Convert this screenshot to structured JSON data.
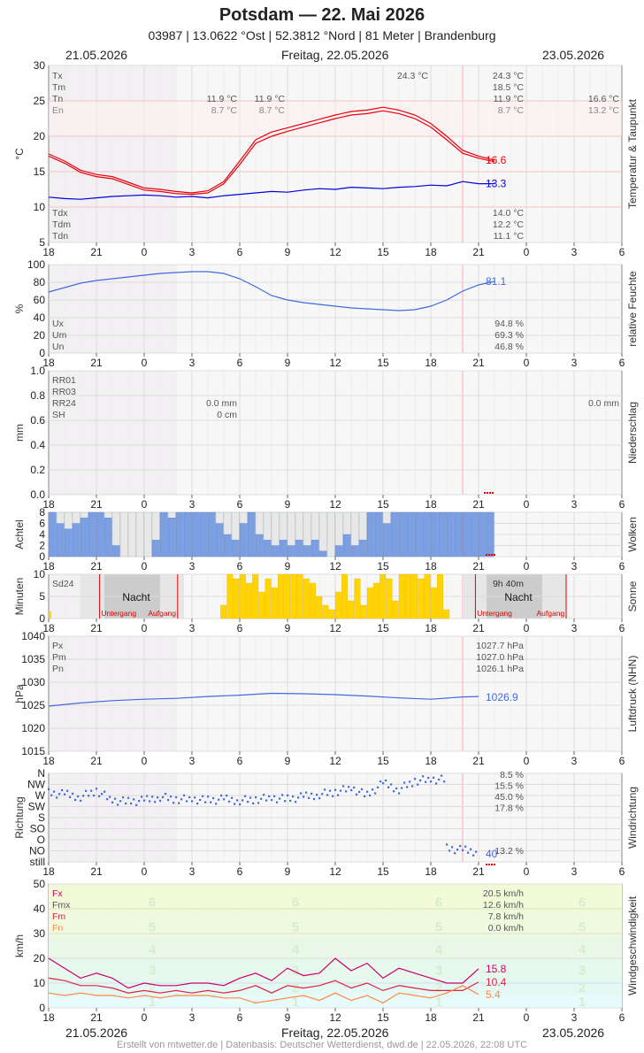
{
  "header": {
    "title": "Potsdam  —  22. Mai 2026",
    "subtitle": "03987  |  13.0622 °Ost  |  52.3812 °Nord  |  81 Meter  |  Brandenburg",
    "date_left": "21.05.2026",
    "date_center": "Freitag, 22.05.2026",
    "date_right": "23.05.2026"
  },
  "footer": "Erstellt von mtwetter.de | Datenbasis: Deutscher Wetterdienst, dwd.de | 22.05.2026, 22:08 UTC",
  "colors": {
    "temp": "#e8000b",
    "dew": "#0000dd",
    "humidity": "#4169e1",
    "precip_mark": "#e8000b",
    "cloud_fill": "#7b9fe0",
    "sun_fill": "#ffd400",
    "night": "#cccccc",
    "pressure": "#4169e1",
    "wind_dir": "#4169e1",
    "gust": "#cc0066",
    "wind_mean": "#dd2244",
    "wind_min": "#ff8844"
  },
  "chart_data": [
    {
      "type": "line",
      "ylabel": "°C",
      "side_label": "Temperatur & Taupunkt",
      "ylim": [
        5,
        30
      ],
      "yticks": [
        "30",
        "25",
        "20",
        "15",
        "10",
        "5"
      ],
      "xticks": [
        "18",
        "21",
        "0",
        "3",
        "6",
        "9",
        "12",
        "15",
        "18",
        "21",
        "0",
        "3",
        "6"
      ],
      "x_hours": [
        18,
        19,
        20,
        21,
        22,
        23,
        24,
        25,
        26,
        27,
        28,
        29,
        30,
        31,
        32,
        33,
        34,
        35,
        36,
        37,
        38,
        39,
        40,
        41,
        42,
        43,
        44,
        45,
        46
      ],
      "series": [
        {
          "key": "temp_upper",
          "values": [
            17.5,
            16.5,
            15.2,
            14.6,
            14.3,
            13.5,
            12.7,
            12.5,
            12.2,
            12.0,
            12.3,
            13.6,
            16.5,
            19.5,
            20.6,
            21.2,
            21.8,
            22.4,
            23.0,
            23.5,
            23.7,
            24.1,
            23.7,
            23.0,
            21.8,
            20.0,
            18.0,
            17.2,
            16.6
          ]
        },
        {
          "key": "temp_lower",
          "values": [
            17.2,
            16.2,
            14.9,
            14.3,
            14.0,
            13.2,
            12.4,
            12.2,
            11.9,
            11.8,
            12.0,
            13.3,
            16.0,
            19.0,
            20.0,
            20.7,
            21.3,
            21.9,
            22.5,
            23.0,
            23.2,
            23.6,
            23.2,
            22.5,
            21.3,
            19.5,
            17.6,
            16.9,
            16.4
          ]
        },
        {
          "key": "dew",
          "values": [
            11.4,
            11.2,
            11.1,
            11.3,
            11.5,
            11.6,
            11.7,
            11.6,
            11.4,
            11.5,
            11.3,
            11.6,
            11.8,
            12.0,
            12.2,
            12.1,
            12.4,
            12.6,
            12.5,
            12.8,
            12.7,
            12.6,
            12.8,
            12.9,
            13.1,
            13.0,
            13.6,
            13.3,
            13.3
          ]
        }
      ],
      "end_labels": [
        "16.6",
        "13.3"
      ],
      "stats_top": [
        {
          "label": "Tx",
          "left": "",
          "right": "24.3 °C",
          "right2": "24.3 °C",
          "far": ""
        },
        {
          "label": "Tm",
          "left": "",
          "right": "",
          "right2": "18.5 °C",
          "far": ""
        },
        {
          "label": "Tn",
          "left": "11.9 °C",
          "right": "11.9 °C",
          "right2": "11.9 °C",
          "far": "16.6 °C"
        },
        {
          "label": "En",
          "left": "8.7 °C",
          "right": "8.7 °C",
          "right2": "8.7 °C",
          "far": "13.2 °C"
        }
      ],
      "stats_bottom": [
        {
          "label": "Tdx",
          "value": "14.0 °C"
        },
        {
          "label": "Tdm",
          "value": "12.2 °C"
        },
        {
          "label": "Tdn",
          "value": "11.1 °C"
        }
      ]
    },
    {
      "type": "line",
      "ylabel": "%",
      "side_label": "relative Feuchte",
      "ylim": [
        0,
        100
      ],
      "yticks": [
        "100",
        "80",
        "60",
        "40",
        "20",
        "0"
      ],
      "x_hours": [
        18,
        19,
        20,
        21,
        22,
        23,
        24,
        25,
        26,
        27,
        28,
        29,
        30,
        31,
        32,
        33,
        34,
        35,
        36,
        37,
        38,
        39,
        40,
        41,
        42,
        43,
        44,
        45,
        46
      ],
      "series": [
        {
          "key": "humidity",
          "values": [
            69,
            74,
            79,
            82,
            84,
            86,
            88,
            90,
            91,
            92,
            92,
            90,
            84,
            75,
            65,
            60,
            57,
            55,
            53,
            51,
            50,
            49,
            48,
            49,
            53,
            60,
            70,
            77,
            81.1
          ]
        }
      ],
      "end_labels": [
        "81.1"
      ],
      "stats": [
        {
          "label": "Ux",
          "value": "94.8 %"
        },
        {
          "label": "Um",
          "value": "69.3 %"
        },
        {
          "label": "Un",
          "value": "46.8 %"
        }
      ]
    },
    {
      "type": "bar",
      "ylabel": "mm",
      "side_label": "Niederschlag",
      "ylim": [
        0,
        1.0
      ],
      "yticks": [
        "1.0",
        "0.8",
        "0.6",
        "0.4",
        "0.2",
        "0.0"
      ],
      "values": [],
      "stats": [
        {
          "label": "RR01",
          "left": "",
          "far": ""
        },
        {
          "label": "RR03",
          "left": "",
          "far": ""
        },
        {
          "label": "RR24",
          "left": "0.0 mm",
          "far": "0.0 mm"
        },
        {
          "label": "SH",
          "left": "0 cm",
          "far": ""
        }
      ]
    },
    {
      "type": "bar",
      "ylabel": "Achtel",
      "side_label": "Wolken",
      "ylim": [
        0,
        8
      ],
      "yticks": [
        "8",
        "6",
        "4",
        "2",
        "0"
      ],
      "x_hours": [
        18,
        18.5,
        19,
        19.5,
        20,
        20.5,
        21,
        21.5,
        22,
        22.5,
        23,
        23.5,
        24,
        24.5,
        25,
        25.5,
        26,
        26.5,
        27,
        27.5,
        28,
        28.5,
        29,
        29.5,
        30,
        30.5,
        31,
        31.5,
        32,
        32.5,
        33,
        33.5,
        34,
        34.5,
        35,
        35.5,
        36,
        36.5,
        37,
        37.5,
        38,
        38.5,
        39,
        39.5,
        40,
        40.5,
        41,
        41.5,
        42,
        42.5,
        43,
        43.5,
        44,
        44.5,
        45,
        45.5
      ],
      "values": [
        8,
        6,
        5,
        6,
        7,
        8,
        8,
        7,
        2,
        0,
        0,
        0,
        0,
        3,
        8,
        7,
        8,
        8,
        8,
        8,
        8,
        6,
        4,
        3,
        6,
        8,
        4,
        3,
        2,
        3,
        2,
        3,
        2,
        3,
        1,
        0,
        2,
        4,
        2,
        3,
        8,
        8,
        6,
        8,
        8,
        8,
        8,
        8,
        8,
        8,
        8,
        8,
        8,
        8,
        8,
        8
      ]
    },
    {
      "type": "bar",
      "ylabel": "Minuten",
      "side_label": "Sonne",
      "ylim": [
        0,
        10
      ],
      "yticks": [
        "10",
        "5",
        "0"
      ],
      "x_hours": [
        28.8,
        29.2,
        29.6,
        30.0,
        30.4,
        30.8,
        31.2,
        31.6,
        32.0,
        32.4,
        32.8,
        33.2,
        33.6,
        34.0,
        34.4,
        34.8,
        35.2,
        35.6,
        36.0,
        36.4,
        36.8,
        37.2,
        37.6,
        38.0,
        38.4,
        38.8,
        39.2,
        39.6,
        40.0,
        40.4,
        40.8,
        41.2,
        41.6,
        42.0,
        42.4,
        42.8
      ],
      "values": [
        3,
        10,
        9,
        10,
        8,
        10,
        6,
        9,
        7,
        10,
        10,
        10,
        10,
        9,
        8,
        5,
        3,
        2,
        6,
        10,
        4,
        9,
        3,
        7,
        8,
        10,
        9,
        4,
        10,
        10,
        10,
        9,
        10,
        7,
        10,
        2
      ],
      "labels": {
        "sd24": "Sd24",
        "sd_value": "9h 40m",
        "night": "Nacht",
        "sunset": "Untergang",
        "sunrise": "Aufgang"
      }
    },
    {
      "type": "line",
      "ylabel": "hPa",
      "side_label": "Luftdruck (NHN)",
      "ylim": [
        1015,
        1040
      ],
      "yticks": [
        "1040",
        "1035",
        "1030",
        "1025",
        "1020",
        "1015"
      ],
      "x_hours": [
        18,
        20,
        22,
        24,
        26,
        28,
        30,
        32,
        34,
        36,
        38,
        40,
        42,
        44,
        45
      ],
      "series": [
        {
          "key": "pressure",
          "values": [
            1024.8,
            1025.5,
            1026.0,
            1026.3,
            1026.5,
            1026.9,
            1027.2,
            1027.6,
            1027.5,
            1027.3,
            1027.0,
            1026.6,
            1026.3,
            1026.8,
            1026.9
          ]
        }
      ],
      "end_labels": [
        "1026.9"
      ],
      "stats": [
        {
          "label": "Px",
          "value": "1027.7 hPa"
        },
        {
          "label": "Pm",
          "value": "1027.0 hPa"
        },
        {
          "label": "Pn",
          "value": "1026.1 hPa"
        }
      ]
    },
    {
      "type": "scatter",
      "ylabel": "Richtung",
      "side_label": "Windrichtung",
      "y_categories": [
        "N",
        "NW",
        "W",
        "SW",
        "S",
        "SO",
        "O",
        "NO",
        "still"
      ],
      "x_hours": [
        18,
        19,
        20,
        21,
        22,
        23,
        24,
        25,
        26,
        27,
        28,
        29,
        30,
        31,
        32,
        33,
        34,
        35,
        36,
        37,
        38,
        39,
        40,
        41,
        42,
        43,
        44,
        45
      ],
      "values": [
        280,
        275,
        265,
        290,
        250,
        245,
        250,
        265,
        255,
        255,
        250,
        255,
        250,
        255,
        260,
        255,
        265,
        275,
        285,
        300,
        270,
        320,
        295,
        330,
        335,
        55,
        48,
        40
      ],
      "end_labels": [
        "40"
      ],
      "stats": [
        {
          "label": "",
          "value": "8.5 %"
        },
        {
          "label": "",
          "value": "15.5 %"
        },
        {
          "label": "",
          "value": "45.0 %"
        },
        {
          "label": "",
          "value": "17.8 %"
        },
        {
          "label": "",
          "value": "13.2 %"
        }
      ]
    },
    {
      "type": "line",
      "ylabel": "km/h",
      "side_label": "Windgeschwindigkeit",
      "ylim": [
        0,
        50
      ],
      "yticks": [
        "50",
        "40",
        "30",
        "20",
        "10",
        "0"
      ],
      "bft_labels": [
        "6",
        "5",
        "4",
        "3",
        "2",
        "1"
      ],
      "x_hours": [
        18,
        19,
        20,
        21,
        22,
        23,
        24,
        25,
        26,
        27,
        28,
        29,
        30,
        31,
        32,
        33,
        34,
        35,
        36,
        37,
        38,
        39,
        40,
        41,
        42,
        43,
        44,
        45
      ],
      "series": [
        {
          "key": "gust",
          "values": [
            20,
            16,
            12,
            14,
            12,
            8,
            10,
            9,
            9,
            10,
            10,
            9,
            12,
            14,
            11,
            16,
            13,
            14,
            20,
            15,
            18,
            12,
            16,
            14,
            12,
            10,
            10,
            15.8
          ]
        },
        {
          "key": "wind_mean",
          "values": [
            12,
            11,
            9,
            9,
            8,
            6,
            7,
            6,
            7,
            6,
            7,
            6,
            7,
            9,
            6,
            9,
            8,
            9,
            11,
            8,
            10,
            7,
            9,
            8,
            7,
            7,
            7,
            10.4
          ]
        },
        {
          "key": "wind_min",
          "values": [
            6,
            5,
            6,
            5,
            5,
            4,
            5,
            4,
            5,
            5,
            5,
            4,
            4,
            2,
            3,
            4,
            5,
            3,
            6,
            3,
            5,
            2,
            6,
            5,
            4,
            6,
            9,
            5.4
          ]
        }
      ],
      "end_labels": [
        "15.8",
        "10.4",
        "5.4"
      ],
      "stats": [
        {
          "label": "Fx",
          "value": "20.5 km/h"
        },
        {
          "label": "Fmx",
          "value": "12.6 km/h"
        },
        {
          "label": "Fm",
          "value": "7.8 km/h"
        },
        {
          "label": "Fn",
          "value": "0.0 km/h"
        }
      ]
    }
  ]
}
